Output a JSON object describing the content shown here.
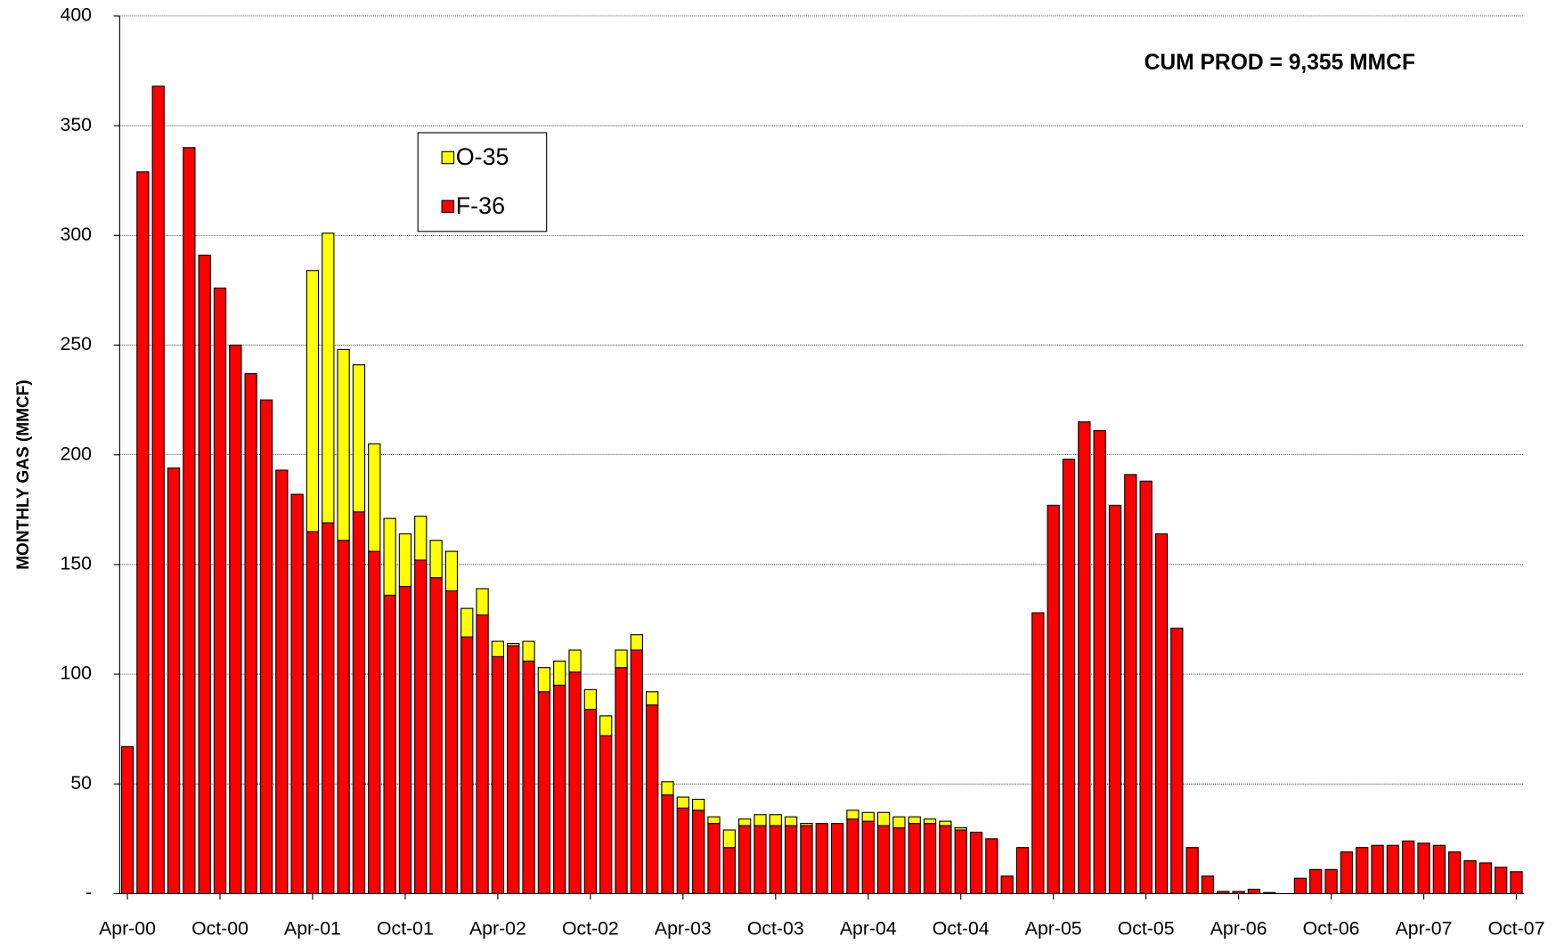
{
  "chart_data": {
    "type": "stacked_bar",
    "y_label": "MONTHLY GAS (MMCF)",
    "annotation": "CUM PROD = 9,355 MMCF",
    "categories": [
      "Apr-00",
      null,
      null,
      null,
      null,
      null,
      "Oct-00",
      null,
      null,
      null,
      null,
      null,
      "Apr-01",
      null,
      null,
      null,
      null,
      null,
      "Oct-01",
      null,
      null,
      null,
      null,
      null,
      "Apr-02",
      null,
      null,
      null,
      null,
      null,
      "Oct-02",
      null,
      null,
      null,
      null,
      null,
      "Apr-03",
      null,
      null,
      null,
      null,
      null,
      "Oct-03",
      null,
      null,
      null,
      null,
      null,
      "Apr-04",
      null,
      null,
      null,
      null,
      null,
      "Oct-04",
      null,
      null,
      null,
      null,
      null,
      "Apr-05",
      null,
      null,
      null,
      null,
      null,
      "Oct-05",
      null,
      null,
      null,
      null,
      null,
      "Apr-06",
      null,
      null,
      null,
      null,
      null,
      "Oct-06",
      null,
      null,
      null,
      null,
      null,
      "Apr-07",
      null,
      null,
      null,
      null,
      null,
      "Oct-07"
    ],
    "series": [
      {
        "name": "F-36",
        "color": "#ff0000",
        "values": [
          67,
          329,
          368,
          194,
          340,
          291,
          276,
          250,
          237,
          225,
          193,
          182,
          165,
          169,
          161,
          174,
          156,
          136,
          140,
          152,
          144,
          138,
          117,
          127,
          108,
          113,
          106,
          92,
          95,
          101,
          84,
          72,
          103,
          111,
          86,
          45,
          39,
          38,
          32,
          21,
          31,
          31,
          31,
          31,
          31,
          32,
          32,
          34,
          33,
          31,
          30,
          32,
          32,
          31,
          29,
          28,
          25,
          8,
          21,
          128,
          177,
          198,
          215,
          211,
          177,
          191,
          188,
          164,
          121,
          21,
          8,
          1,
          1,
          2,
          0.5,
          0,
          7,
          11,
          11,
          19,
          21,
          22,
          22,
          24,
          23,
          22,
          19,
          15,
          14,
          12,
          10
        ]
      },
      {
        "name": "O-35",
        "color": "#ffff00",
        "values": [
          0,
          0,
          0,
          0,
          0,
          0,
          0,
          0,
          0,
          0,
          0,
          0,
          119,
          132,
          87,
          67,
          49,
          35,
          24,
          20,
          17,
          18,
          13,
          12,
          7,
          1,
          9,
          11,
          11,
          10,
          9,
          9,
          8,
          7,
          6,
          6,
          5,
          5,
          3,
          8,
          3,
          5,
          5,
          4,
          1,
          0,
          0,
          4,
          4,
          6,
          5,
          3,
          2,
          2,
          1,
          0,
          0,
          0,
          0,
          0,
          0,
          0,
          0,
          0,
          0,
          0,
          0,
          0,
          0,
          0,
          0,
          0,
          0,
          0,
          0,
          0,
          0,
          0,
          0,
          0,
          0,
          0,
          0,
          0,
          0,
          0,
          0,
          0,
          0,
          0,
          0
        ]
      }
    ],
    "ylim": [
      0,
      400
    ],
    "yticks": [
      {
        "value": 0,
        "label": "-"
      },
      50,
      100,
      150,
      200,
      250,
      300,
      350,
      400
    ],
    "grid": true,
    "legend": "upper-center"
  }
}
